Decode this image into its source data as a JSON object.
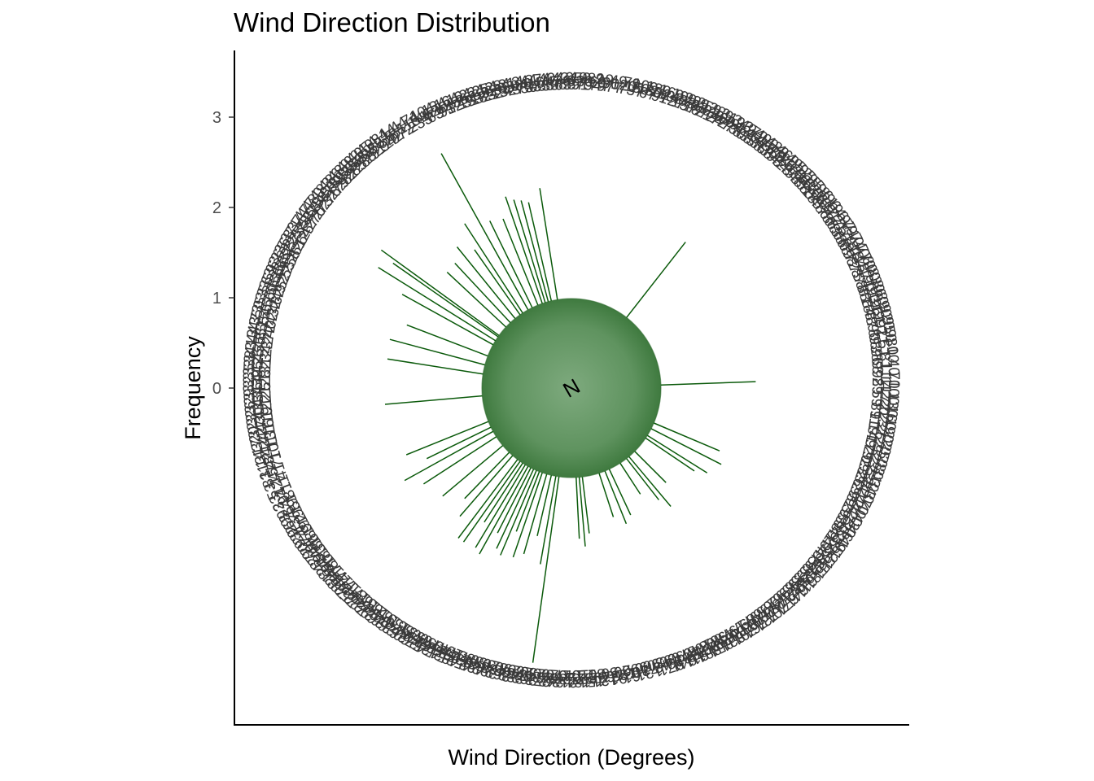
{
  "chart_data": {
    "type": "polar-bar",
    "title": "Wind Direction Distribution",
    "xlabel": "Wind Direction (Degrees)",
    "ylabel": "Frequency",
    "y_ticks": [
      0,
      1,
      2,
      3
    ],
    "ylim": [
      -1,
      3.4
    ],
    "center_label": "N",
    "grid": false,
    "bar_color": "#0b5a0b",
    "center_fill": "#6e9e6e",
    "label_color": "#3a3a3a",
    "directions": [
      {
        "deg": 38,
        "value": 1.06
      },
      {
        "deg": 88,
        "value": 1.05
      },
      {
        "deg": 113,
        "value": 0.79
      },
      {
        "deg": 117,
        "value": 0.87
      },
      {
        "deg": 122,
        "value": 0.78
      },
      {
        "deg": 124,
        "value": 0.65
      },
      {
        "deg": 135,
        "value": 0.49
      },
      {
        "deg": 140,
        "value": 0.72
      },
      {
        "deg": 142,
        "value": 0.58
      },
      {
        "deg": 147,
        "value": 0.41
      },
      {
        "deg": 155,
        "value": 0.56
      },
      {
        "deg": 158,
        "value": 0.63
      },
      {
        "deg": 162,
        "value": 0.51
      },
      {
        "deg": 173,
        "value": 0.63
      },
      {
        "deg": 175,
        "value": 0.77
      },
      {
        "deg": 177,
        "value": 0.68
      },
      {
        "deg": 188,
        "value": 2.08
      },
      {
        "deg": 190,
        "value": 0.99
      },
      {
        "deg": 193,
        "value": 0.69
      },
      {
        "deg": 196,
        "value": 0.92
      },
      {
        "deg": 199,
        "value": 0.99
      },
      {
        "deg": 201,
        "value": 0.71
      },
      {
        "deg": 203,
        "value": 1.02
      },
      {
        "deg": 205,
        "value": 0.97
      },
      {
        "deg": 207,
        "value": 0.81
      },
      {
        "deg": 209,
        "value": 1.11
      },
      {
        "deg": 211,
        "value": 1.07
      },
      {
        "deg": 213,
        "value": 0.78
      },
      {
        "deg": 215,
        "value": 1.09
      },
      {
        "deg": 217,
        "value": 1.09
      },
      {
        "deg": 221,
        "value": 0.89
      },
      {
        "deg": 224,
        "value": 0.71
      },
      {
        "deg": 230,
        "value": 0.87
      },
      {
        "deg": 237,
        "value": 0.96
      },
      {
        "deg": 241,
        "value": 1.12
      },
      {
        "deg": 244,
        "value": 0.79
      },
      {
        "deg": 248,
        "value": 0.98
      },
      {
        "deg": 265,
        "value": 1.08
      },
      {
        "deg": 279,
        "value": 1.07
      },
      {
        "deg": 285,
        "value": 1.09
      },
      {
        "deg": 291,
        "value": 0.96
      },
      {
        "deg": 299,
        "value": 1.15
      },
      {
        "deg": 302,
        "value": 1.53
      },
      {
        "deg": 305,
        "value": 1.42
      },
      {
        "deg": 306,
        "value": 1.61
      },
      {
        "deg": 313,
        "value": 0.89
      },
      {
        "deg": 317,
        "value": 0.9
      },
      {
        "deg": 321,
        "value": 1.02
      },
      {
        "deg": 325,
        "value": 0.88
      },
      {
        "deg": 327,
        "value": 1.18
      },
      {
        "deg": 331,
        "value": 1.98
      },
      {
        "deg": 334,
        "value": 1.07
      },
      {
        "deg": 338,
        "value": 1.03
      },
      {
        "deg": 341,
        "value": 1.25
      },
      {
        "deg": 343,
        "value": 1.19
      },
      {
        "deg": 345,
        "value": 1.16
      },
      {
        "deg": 347,
        "value": 1.12
      },
      {
        "deg": 351,
        "value": 1.25
      }
    ]
  }
}
